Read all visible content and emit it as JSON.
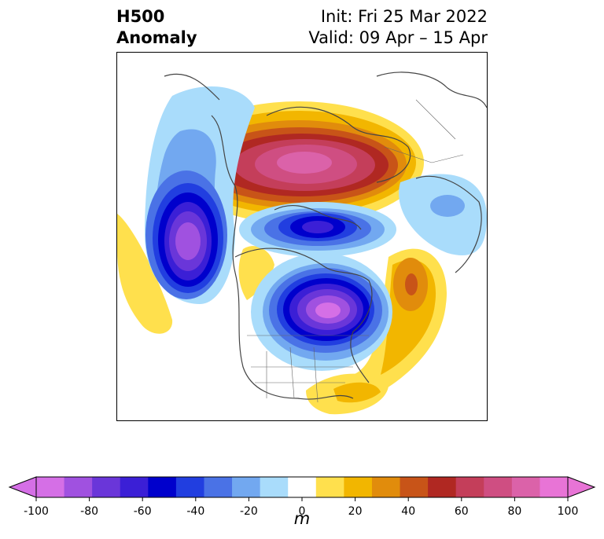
{
  "title": {
    "left_line1": "H500",
    "left_line2": "Anomaly",
    "right_line1": "Init: Fri 25 Mar 2022",
    "right_line2": "Valid: 09 Apr – 15 Apr"
  },
  "colorbar": {
    "unit_label": "m",
    "ticks": [
      "-100",
      "-80",
      "-60",
      "-40",
      "-20",
      "0",
      "20",
      "40",
      "60",
      "80",
      "100"
    ],
    "levels": [
      -100,
      -90,
      -80,
      -70,
      -60,
      -50,
      -40,
      -30,
      -20,
      -10,
      10,
      20,
      30,
      40,
      50,
      60,
      70,
      80,
      90,
      100
    ],
    "colors": [
      "#d56fe6",
      "#a051e0",
      "#6a36d9",
      "#3b1fd6",
      "#0000cc",
      "#213ee0",
      "#4a72e6",
      "#72a8f0",
      "#a9dcfb",
      "#ffffff",
      "#ffe04d",
      "#f2b600",
      "#e18c0c",
      "#c85418",
      "#b02822",
      "#c43e5a",
      "#cf4e82",
      "#db62a9",
      "#e874d6"
    ]
  },
  "map": {
    "anomaly_features": [
      {
        "name": "arctic-ridge",
        "sign": "positive",
        "peak_m": 85
      },
      {
        "name": "north-pacific-trough",
        "sign": "negative",
        "peak_m": -95
      },
      {
        "name": "hudson-bay-trough",
        "sign": "negative",
        "peak_m": -95
      },
      {
        "name": "barents-trough",
        "sign": "negative",
        "peak_m": -65
      },
      {
        "name": "north-atlantic-ridge",
        "sign": "positive",
        "peak_m": 45
      },
      {
        "name": "siberia-trough",
        "sign": "negative",
        "peak_m": -25
      },
      {
        "name": "west-canada-ridge",
        "sign": "positive",
        "peak_m": 20
      },
      {
        "name": "east-pacific-ridge",
        "sign": "positive",
        "peak_m": 15
      },
      {
        "name": "southeast-us-ridge",
        "sign": "positive",
        "peak_m": 20
      }
    ]
  }
}
